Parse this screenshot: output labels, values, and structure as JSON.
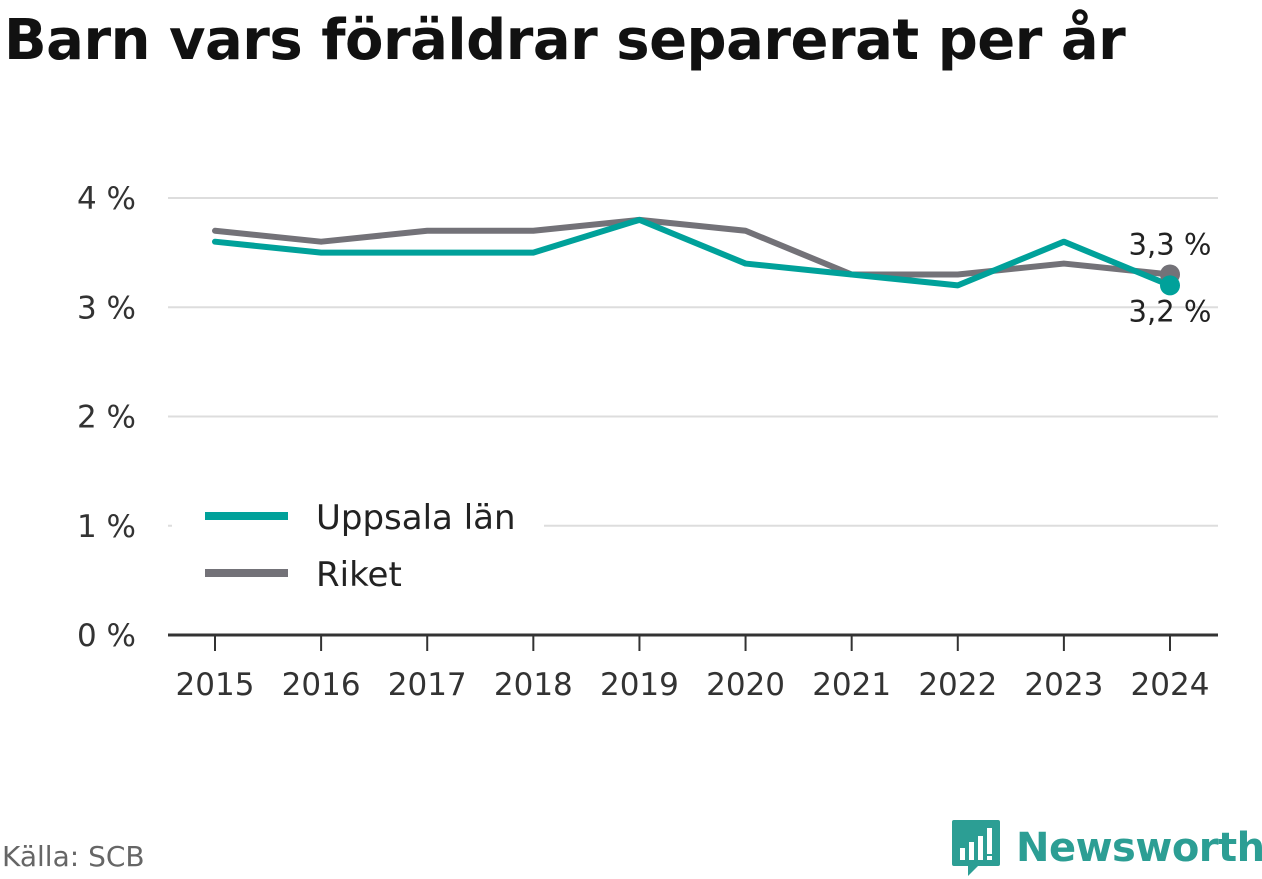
{
  "title": "Barn vars föräldrar separerat per år",
  "source": "Källa: SCB",
  "brand": "Newsworthy",
  "chart_data": {
    "type": "line",
    "x": [
      "2015",
      "2016",
      "2017",
      "2018",
      "2019",
      "2020",
      "2021",
      "2022",
      "2023",
      "2024"
    ],
    "series": [
      {
        "name": "Uppsala län",
        "color": "#00a19a",
        "values": [
          3.6,
          3.5,
          3.5,
          3.5,
          3.8,
          3.4,
          3.3,
          3.2,
          3.6,
          3.2
        ]
      },
      {
        "name": "Riket",
        "color": "#737278",
        "values": [
          3.7,
          3.6,
          3.7,
          3.7,
          3.8,
          3.7,
          3.3,
          3.3,
          3.4,
          3.3
        ]
      }
    ],
    "y_ticks": [
      0,
      1,
      2,
      3,
      4
    ],
    "y_tick_labels": [
      "0 %",
      "1 %",
      "2 %",
      "3 %",
      "4 %"
    ],
    "ylim": [
      0,
      4
    ],
    "end_labels": [
      "3,2 %",
      "3,3 %"
    ],
    "grid": true,
    "legend_position": "bottom-left"
  }
}
